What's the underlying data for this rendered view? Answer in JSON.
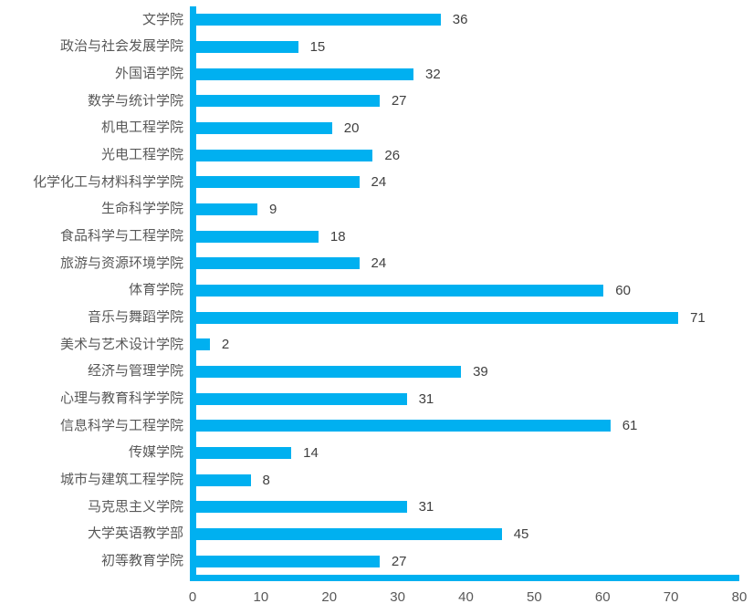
{
  "chart_data": {
    "type": "bar",
    "orientation": "horizontal",
    "title": "",
    "xlabel": "",
    "ylabel": "",
    "xlim": [
      0,
      80
    ],
    "x_ticks": [
      0,
      10,
      20,
      30,
      40,
      50,
      60,
      70,
      80
    ],
    "grid": false,
    "legend": false,
    "data_labels": true,
    "bar_color": "#00b0f0",
    "axis_line_color": "#00b0f0",
    "label_color": "#595959",
    "value_label_color": "#404040",
    "categories": [
      "文学院",
      "政治与社会发展学院",
      "外国语学院",
      "数学与统计学院",
      "机电工程学院",
      "光电工程学院",
      "化学化工与材料科学学院",
      "生命科学学院",
      "食品科学与工程学院",
      "旅游与资源环境学院",
      "体育学院",
      "音乐与舞蹈学院",
      "美术与艺术设计学院",
      "经济与管理学院",
      "心理与教育科学学院",
      "信息科学与工程学院",
      "传媒学院",
      "城市与建筑工程学院",
      "马克思主义学院",
      "大学英语教学部",
      "初等教育学院"
    ],
    "values": [
      36,
      15,
      32,
      27,
      20,
      26,
      24,
      9,
      18,
      24,
      60,
      71,
      2,
      39,
      31,
      61,
      14,
      8,
      31,
      45,
      27
    ]
  }
}
